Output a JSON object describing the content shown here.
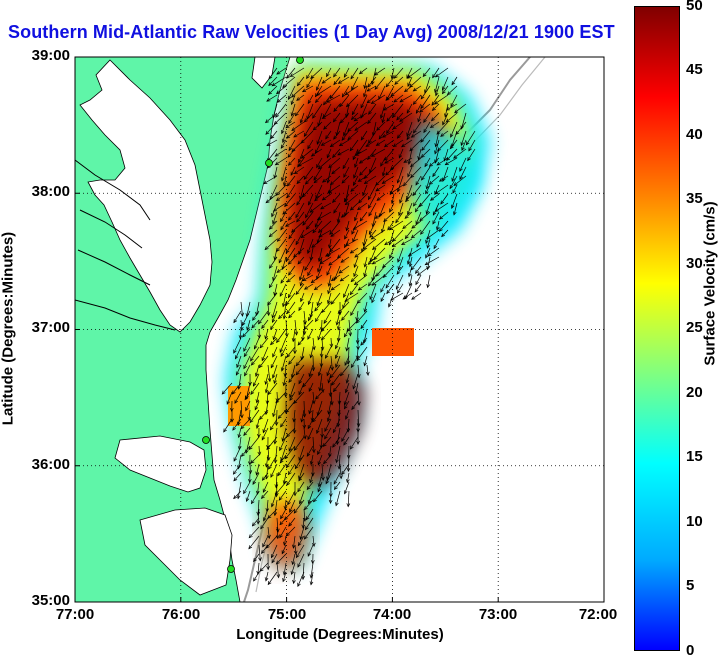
{
  "title": "Southern Mid-Atlantic Raw Velocities (1 Day Avg) 2008/12/21 1900 EST",
  "xlabel": "Longitude (Degrees:Minutes)",
  "ylabel": "Latitude (Degrees:Minutes)",
  "colorbar": {
    "label": "Surface Velocity (cm/s)",
    "ticks": [
      "50",
      "45",
      "40",
      "35",
      "30",
      "25",
      "20",
      "15",
      "10",
      "5",
      "0"
    ],
    "range": [
      0,
      50
    ],
    "colors": [
      "#0000ff",
      "#00aaff",
      "#00ffff",
      "#80ff80",
      "#ffff00",
      "#ff8000",
      "#ff0000",
      "#800000"
    ]
  },
  "x_ticks": [
    "77:00",
    "76:00",
    "75:00",
    "74:00",
    "73:00",
    "72:00"
  ],
  "y_ticks": [
    "39:00",
    "38:00",
    "37:00",
    "36:00",
    "35:00"
  ],
  "map": {
    "lon_range": [
      -77,
      -72
    ],
    "lat_range": [
      35,
      39
    ],
    "land_color": "#5ff5a8",
    "station_color": "#22dd22"
  }
}
